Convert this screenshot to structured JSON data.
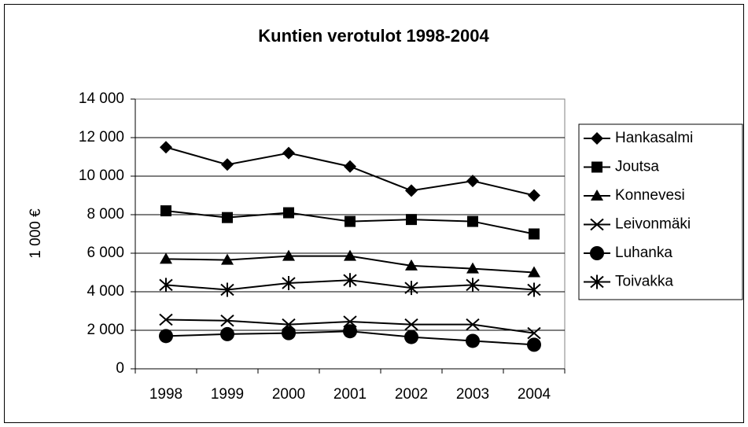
{
  "chart_data": {
    "type": "line",
    "title": "Kuntien verotulot 1998-2004",
    "y_label": "1 000 €",
    "categories": [
      "1998",
      "1999",
      "2000",
      "2001",
      "2002",
      "2003",
      "2004"
    ],
    "series": [
      {
        "name": "Hankasalmi",
        "color": "#000000",
        "marker": "diamond",
        "values": [
          11500,
          10600,
          11200,
          10500,
          9250,
          9750,
          9000
        ]
      },
      {
        "name": "Joutsa",
        "color": "#000000",
        "marker": "square",
        "values": [
          8200,
          7850,
          8100,
          7650,
          7750,
          7650,
          7000
        ]
      },
      {
        "name": "Konnevesi",
        "color": "#000000",
        "marker": "triangle",
        "values": [
          5700,
          5650,
          5850,
          5850,
          5350,
          5200,
          5000
        ]
      },
      {
        "name": "Leivonmäki",
        "color": "#000000",
        "marker": "x",
        "values": [
          2550,
          2500,
          2300,
          2450,
          2300,
          2300,
          1850
        ]
      },
      {
        "name": "Luhanka",
        "color": "#000000",
        "marker": "circle",
        "values": [
          1700,
          1800,
          1850,
          1950,
          1650,
          1450,
          1250
        ]
      },
      {
        "name": "Toivakka",
        "color": "#000000",
        "marker": "star",
        "values": [
          4350,
          4100,
          4450,
          4600,
          4200,
          4350,
          4100
        ]
      }
    ],
    "ylim": [
      0,
      14000
    ],
    "yticks": [
      0,
      {
        "value": 2000,
        "label": "2 000"
      },
      {
        "value": 4000,
        "label": "4 000"
      },
      {
        "value": 6000,
        "label": "6 000"
      },
      {
        "value": 8000,
        "label": "8 000"
      },
      {
        "value": 10000,
        "label": "10 000"
      },
      {
        "value": 12000,
        "label": "12 000"
      },
      {
        "value": 14000,
        "label": "14 000"
      }
    ],
    "grid": true,
    "legend": "right"
  }
}
